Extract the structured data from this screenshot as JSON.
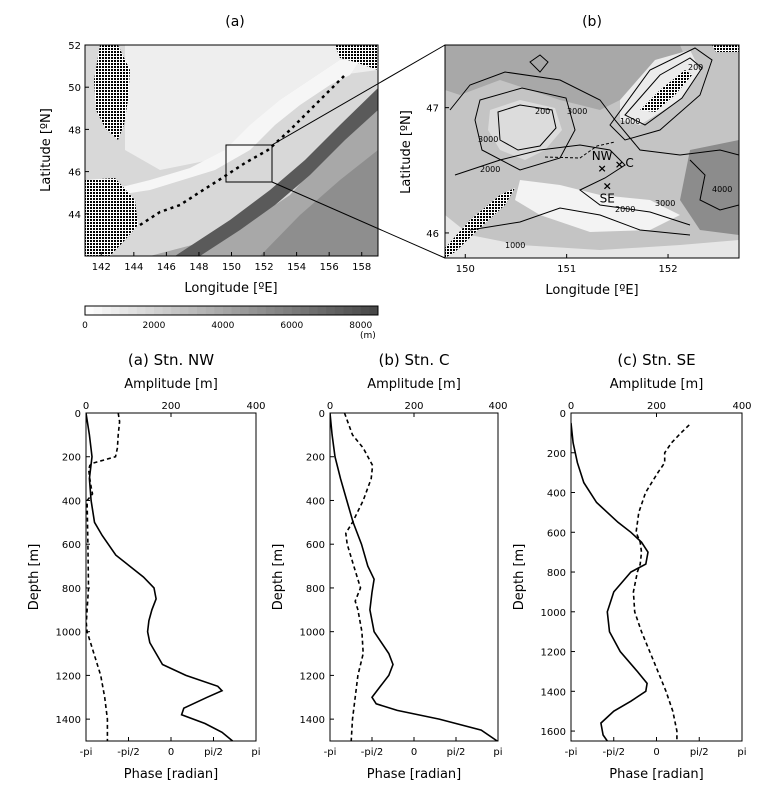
{
  "maps": {
    "a": {
      "panel_label": "(a)",
      "xlabel": "Longitude [ºE]",
      "ylabel": "Latitude [ºN]",
      "xlim": [
        141,
        159
      ],
      "ylim": [
        42,
        52
      ],
      "xticks": [
        "142",
        "144",
        "146",
        "148",
        "150",
        "152",
        "154",
        "156",
        "158"
      ],
      "yticks": [
        "44",
        "46",
        "48",
        "50",
        "52"
      ]
    },
    "b": {
      "panel_label": "(b)",
      "xlabel": "Longitude [ºE]",
      "ylabel": "Latitude [ºN]",
      "xlim": [
        149.8,
        152.7
      ],
      "ylim": [
        45.8,
        47.5
      ],
      "xticks": [
        "150",
        "151",
        "152"
      ],
      "yticks": [
        "46",
        "47"
      ],
      "stations": [
        {
          "name": "NW",
          "lon": 151.35,
          "lat": 46.52
        },
        {
          "name": "C",
          "lon": 151.52,
          "lat": 46.55
        },
        {
          "name": "SE",
          "lon": 151.4,
          "lat": 46.38
        }
      ],
      "contour_labels": [
        "200",
        "1000",
        "2000",
        "3000",
        "4000"
      ]
    },
    "colorbar": {
      "ticks": [
        "0",
        "2000",
        "4000",
        "6000",
        "8000"
      ],
      "unit": "(m)",
      "range": [
        0,
        8500
      ]
    }
  },
  "chart_data": [
    {
      "type": "line",
      "title": "(a) Stn. NW",
      "top_xlabel": "Amplitude [m]",
      "bottom_xlabel": "Phase [radian]",
      "ylabel": "Depth [m]",
      "amp_xlim": [
        0,
        400
      ],
      "phase_xlim": [
        "-pi",
        "pi"
      ],
      "ylim": [
        1500,
        0
      ],
      "amp_ticks": [
        "0",
        "200",
        "400"
      ],
      "phase_ticks": [
        "-pi",
        "-pi/2",
        "0",
        "pi/2",
        "pi"
      ],
      "depth_ticks": [
        "0",
        "200",
        "400",
        "600",
        "800",
        "1000",
        "1200",
        "1400"
      ],
      "amplitude": {
        "depth": [
          0,
          100,
          200,
          300,
          400,
          500,
          560,
          650,
          750,
          800,
          850,
          900,
          950,
          1000,
          1050,
          1100,
          1150,
          1200,
          1250,
          1270,
          1300,
          1350,
          1380,
          1420,
          1460,
          1500
        ],
        "value": [
          0,
          8,
          14,
          8,
          12,
          20,
          38,
          70,
          135,
          160,
          165,
          155,
          148,
          145,
          150,
          165,
          180,
          235,
          310,
          320,
          285,
          230,
          225,
          280,
          320,
          345
        ]
      },
      "phase": {
        "depth": [
          0,
          40,
          100,
          160,
          200,
          230,
          240,
          260,
          300,
          340,
          370,
          400,
          600,
          800,
          960,
          1000,
          1100,
          1200,
          1300,
          1400,
          1500
        ],
        "value": [
          -1.95,
          -1.9,
          -1.95,
          -1.98,
          -2.05,
          -2.9,
          -3.0,
          -3.04,
          -3.0,
          -2.95,
          -2.9,
          -3.1,
          -3.07,
          -3.05,
          -3.13,
          -3.1,
          -2.85,
          -2.6,
          -2.45,
          -2.35,
          -2.35
        ]
      }
    },
    {
      "type": "line",
      "title": "(b) Stn. C",
      "top_xlabel": "Amplitude [m]",
      "bottom_xlabel": "Phase [radian]",
      "ylabel": "Depth [m]",
      "amp_xlim": [
        0,
        400
      ],
      "phase_xlim": [
        "-pi",
        "pi"
      ],
      "ylim": [
        1500,
        0
      ],
      "amp_ticks": [
        "0",
        "200",
        "400"
      ],
      "phase_ticks": [
        "-pi",
        "-pi/2",
        "0",
        "pi/2",
        "pi"
      ],
      "depth_ticks": [
        "0",
        "200",
        "400",
        "600",
        "800",
        "1000",
        "1200",
        "1400"
      ],
      "amplitude": {
        "depth": [
          0,
          100,
          200,
          300,
          400,
          500,
          600,
          700,
          760,
          820,
          900,
          1000,
          1100,
          1150,
          1200,
          1250,
          1300,
          1330,
          1360,
          1400,
          1450,
          1500
        ],
        "value": [
          0,
          5,
          12,
          25,
          40,
          55,
          75,
          90,
          105,
          100,
          95,
          105,
          140,
          150,
          140,
          120,
          100,
          110,
          160,
          260,
          360,
          398
        ]
      },
      "phase": {
        "depth": [
          0,
          100,
          160,
          240,
          300,
          400,
          500,
          550,
          600,
          700,
          800,
          860,
          900,
          1000,
          1100,
          1200,
          1300,
          1400,
          1500
        ],
        "value": [
          -2.6,
          -2.3,
          -1.9,
          -1.55,
          -1.6,
          -1.9,
          -2.3,
          -2.55,
          -2.5,
          -2.25,
          -2.0,
          -2.2,
          -2.1,
          -1.95,
          -1.9,
          -2.1,
          -2.2,
          -2.3,
          -2.35
        ]
      }
    },
    {
      "type": "line",
      "title": "(c) Stn. SE",
      "top_xlabel": "Amplitude [m]",
      "bottom_xlabel": "Phase [radian]",
      "ylabel": "Depth [m]",
      "amp_xlim": [
        0,
        400
      ],
      "phase_xlim": [
        "-pi",
        "pi"
      ],
      "ylim": [
        1650,
        0
      ],
      "amp_ticks": [
        "0",
        "200",
        "400"
      ],
      "phase_ticks": [
        "-pi",
        "-pi/2",
        "0",
        "pi/2",
        "pi"
      ],
      "depth_ticks": [
        "0",
        "200",
        "400",
        "600",
        "800",
        "1000",
        "1200",
        "1400",
        "1600"
      ],
      "amplitude": {
        "depth": [
          50,
          150,
          250,
          350,
          450,
          550,
          600,
          650,
          700,
          760,
          800,
          900,
          1000,
          1100,
          1200,
          1300,
          1360,
          1400,
          1450,
          1500,
          1560,
          1620,
          1650
        ],
        "value": [
          0,
          5,
          15,
          30,
          60,
          110,
          140,
          165,
          180,
          175,
          140,
          100,
          85,
          90,
          115,
          155,
          178,
          175,
          140,
          100,
          70,
          75,
          85
        ]
      },
      "phase": {
        "depth": [
          60,
          100,
          150,
          200,
          250,
          300,
          400,
          500,
          600,
          650,
          700,
          760,
          800,
          900,
          1000,
          1100,
          1200,
          1300,
          1400,
          1500,
          1600,
          1650
        ],
        "value": [
          1.2,
          0.9,
          0.55,
          0.3,
          0.3,
          0.05,
          -0.4,
          -0.65,
          -0.75,
          -0.6,
          -0.55,
          -0.6,
          -0.7,
          -0.85,
          -0.8,
          -0.55,
          -0.25,
          0.05,
          0.35,
          0.6,
          0.75,
          0.75
        ]
      }
    }
  ]
}
